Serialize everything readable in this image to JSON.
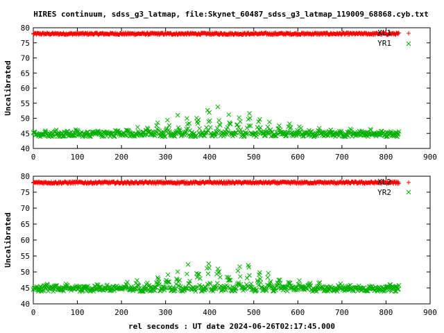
{
  "title": "HIRES continuum, sdss_g3_latmap, file:Skynet_60487_sdss_g3_latmap_119009_68868.cyb.txt",
  "xlabel": "rel seconds : UT date 2024-06-26T02:17:45.000",
  "chart_data": [
    {
      "type": "scatter",
      "ylabel": "Uncalibrated",
      "xlim": [
        0,
        900
      ],
      "ylim": [
        40,
        80
      ],
      "xticks": [
        "0",
        "100",
        "200",
        "300",
        "400",
        "500",
        "600",
        "700",
        "800",
        "900"
      ],
      "yticks": [
        "40",
        "45",
        "50",
        "55",
        "60",
        "65",
        "70",
        "75",
        "80"
      ],
      "grid": false,
      "legend_position": "top-right",
      "series": [
        {
          "name": "XL1",
          "marker": "+",
          "color": "#ff0000",
          "x_range": [
            0,
            830
          ],
          "baseline": 78.0,
          "noise": 0.35
        },
        {
          "name": "YR1",
          "marker": "x",
          "color": "#00b000",
          "x_range": [
            0,
            830
          ],
          "baseline": 44.7,
          "noise": 0.8,
          "peak_center": 420,
          "peak_height": 8.5,
          "peak_width": 130,
          "oscillation_period": 23
        }
      ]
    },
    {
      "type": "scatter",
      "ylabel": "Uncalibrated",
      "xlim": [
        0,
        900
      ],
      "ylim": [
        40,
        80
      ],
      "xticks": [
        "0",
        "100",
        "200",
        "300",
        "400",
        "500",
        "600",
        "700",
        "800",
        "900"
      ],
      "yticks": [
        "40",
        "45",
        "50",
        "55",
        "60",
        "65",
        "70",
        "75",
        "80"
      ],
      "grid": false,
      "legend_position": "top-right",
      "series": [
        {
          "name": "XL2",
          "marker": "+",
          "color": "#ff0000",
          "x_range": [
            0,
            830
          ],
          "baseline": 78.0,
          "noise": 0.35
        },
        {
          "name": "YR2",
          "marker": "x",
          "color": "#00b000",
          "x_range": [
            0,
            830
          ],
          "baseline": 44.7,
          "noise": 0.8,
          "peak_center": 420,
          "peak_height": 8.5,
          "peak_width": 130,
          "oscillation_period": 23
        }
      ]
    }
  ]
}
